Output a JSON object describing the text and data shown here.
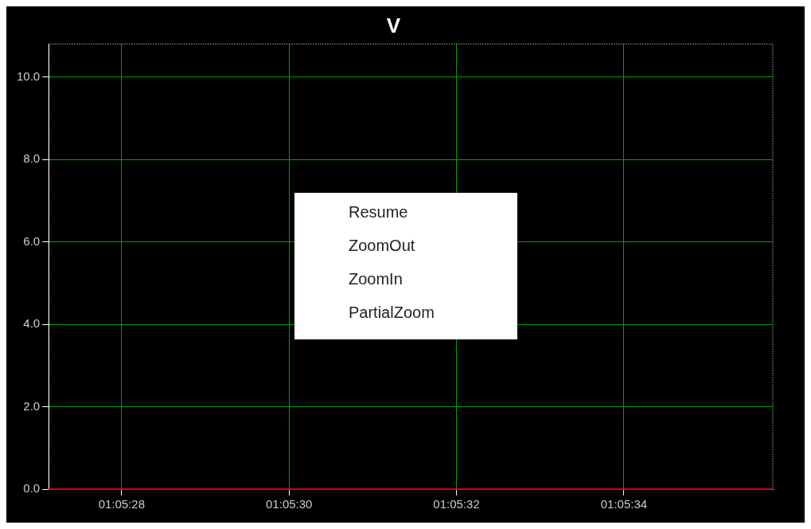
{
  "chart_data": {
    "type": "line",
    "title": "V",
    "xlim": [
      1.090869,
      1.093272
    ],
    "xticks": [
      {
        "value": 1.0911111,
        "label": "01:05:28"
      },
      {
        "value": 1.0916667,
        "label": "01:05:30"
      },
      {
        "value": 1.0922222,
        "label": "01:05:32"
      },
      {
        "value": 1.0927778,
        "label": "01:05:34"
      }
    ],
    "ylim": [
      0,
      10.8
    ],
    "yticks": [
      {
        "value": 0,
        "label": "0.0"
      },
      {
        "value": 2,
        "label": "2.0"
      },
      {
        "value": 4,
        "label": "4.0"
      },
      {
        "value": 6,
        "label": "6.0"
      },
      {
        "value": 8,
        "label": "8.0"
      },
      {
        "value": 10,
        "label": "10.0"
      }
    ],
    "series": [
      {
        "color": "#e00000",
        "x": [
          1.090869,
          1.093272
        ],
        "values": [
          0,
          0
        ]
      }
    ],
    "grid": true,
    "legend": false,
    "marker": "none",
    "line_style": "solid",
    "annotations": [
      "Resume",
      "ZoomOut",
      "ZoomIn",
      "PartialZoom"
    ]
  }
}
